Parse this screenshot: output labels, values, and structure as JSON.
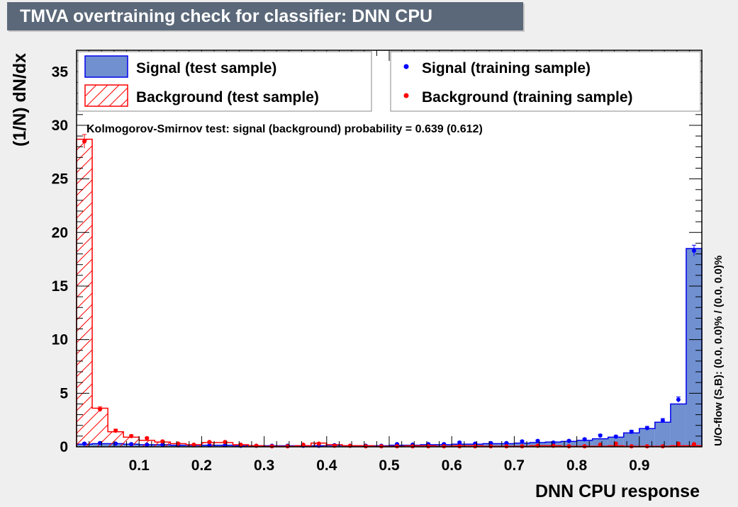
{
  "title": "TMVA overtraining check for classifier: DNN CPU",
  "colors": {
    "signal_fill": "#7090d0",
    "signal_line": "#0000ee",
    "signal_point": "#0000ff",
    "background_line": "#ff0000",
    "background_point": "#ff0000",
    "frame": "#000000"
  },
  "legend": {
    "signal_test": "Signal (test sample)",
    "background_test": "Background (test sample)",
    "signal_train": "Signal (training sample)",
    "background_train": "Background (training sample)"
  },
  "ks_text": "Kolmogorov-Smirnov test: signal (background) probability = 0.639 (0.612)",
  "overflow_text": "U/O-flow (S,B): (0.0, 0.0)% / (0.0, 0.0)%",
  "chart_data": {
    "type": "histogram",
    "xlabel": "DNN CPU response",
    "ylabel": "(1/N) dN/dx",
    "xlim": [
      0.0,
      1.0
    ],
    "ylim": [
      0,
      37
    ],
    "bins": 40,
    "x_ticks": [
      "0.1",
      "0.2",
      "0.3",
      "0.4",
      "0.5",
      "0.6",
      "0.7",
      "0.8",
      "0.9"
    ],
    "y_ticks": [
      "0",
      "5",
      "10",
      "15",
      "20",
      "25",
      "30",
      "35"
    ],
    "series": [
      {
        "name": "Signal (test sample)",
        "style": "filled",
        "values": [
          0.25,
          0.3,
          0.3,
          0.25,
          0.2,
          0.2,
          0.15,
          0.15,
          0.15,
          0.15,
          0.1,
          0.1,
          0.1,
          0.1,
          0.1,
          0.1,
          0.15,
          0.1,
          0.1,
          0.1,
          0.15,
          0.15,
          0.2,
          0.2,
          0.25,
          0.25,
          0.3,
          0.3,
          0.35,
          0.4,
          0.45,
          0.5,
          0.6,
          0.75,
          0.9,
          1.3,
          1.7,
          2.3,
          4.0,
          18.5
        ]
      },
      {
        "name": "Background (test sample)",
        "style": "hatched",
        "values": [
          28.7,
          3.6,
          1.4,
          0.9,
          0.6,
          0.45,
          0.3,
          0.2,
          0.4,
          0.4,
          0.2,
          0.1,
          0.05,
          0.05,
          0.1,
          0.35,
          0.2,
          0.1,
          0.1,
          0.05,
          0.05,
          0.1,
          0.1,
          0.05,
          0.1,
          0.1,
          0.05,
          0.05,
          0.05,
          0.1,
          0.1,
          0.05,
          0.05,
          0.05,
          0.1,
          0.05,
          0.05,
          0.05,
          0.1,
          0.1
        ]
      },
      {
        "name": "Signal (training sample)",
        "style": "points",
        "values": [
          0.3,
          0.35,
          0.3,
          0.25,
          0.2,
          0.2,
          0.15,
          0.15,
          0.15,
          0.15,
          0.1,
          0.1,
          0.1,
          0.1,
          0.1,
          0.1,
          0.15,
          0.1,
          0.1,
          0.1,
          0.25,
          0.2,
          0.25,
          0.25,
          0.4,
          0.3,
          0.35,
          0.35,
          0.5,
          0.55,
          0.4,
          0.55,
          0.7,
          1.05,
          0.95,
          1.4,
          1.75,
          2.45,
          4.4,
          18.3
        ]
      },
      {
        "name": "Background (training sample)",
        "style": "points",
        "values": [
          28.5,
          3.5,
          1.5,
          1.0,
          0.8,
          0.5,
          0.3,
          0.2,
          0.45,
          0.45,
          0.2,
          0.1,
          0.05,
          0.05,
          0.2,
          0.3,
          0.1,
          0.1,
          0.05,
          0.05,
          0.05,
          0.05,
          0.05,
          0.05,
          0.05,
          0.05,
          0.05,
          0.05,
          0.05,
          0.1,
          0.1,
          0.05,
          0.05,
          0.2,
          0.3,
          0.05,
          0.05,
          0.05,
          0.3,
          0.25
        ]
      }
    ]
  }
}
